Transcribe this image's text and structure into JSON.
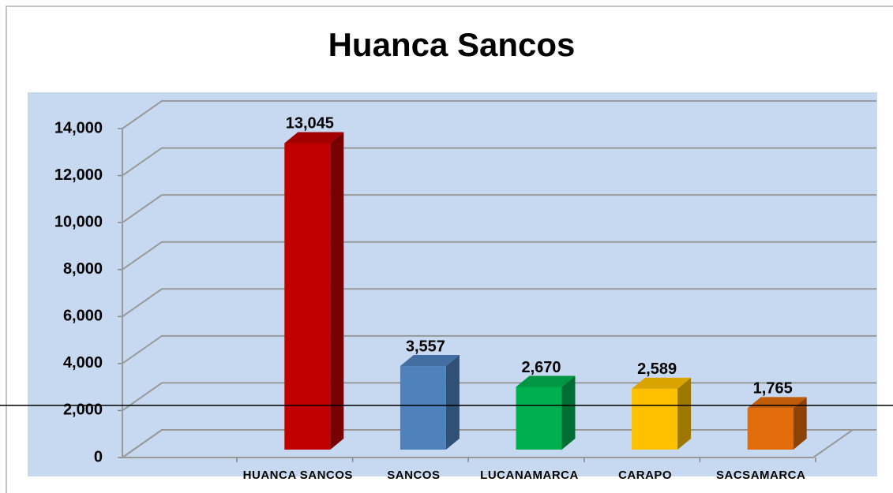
{
  "chart_data": {
    "type": "bar3d",
    "title": "Huanca Sancos",
    "categories": [
      "HUANCA SANCOS",
      "SANCOS",
      "LUCANAMARCA",
      "CARAPO",
      "SACSAMARCA"
    ],
    "values": [
      13045,
      3557,
      2670,
      2589,
      1765
    ],
    "value_labels": [
      "13,045",
      "3,557",
      "2,670",
      "2,589",
      "1,765"
    ],
    "colors": [
      "#c00000",
      "#4f81bd",
      "#00b050",
      "#ffc000",
      "#e36c0a"
    ],
    "ylim": [
      0,
      14000
    ],
    "yticks": [
      0,
      {
        "value": 2000,
        "label": "2,000"
      },
      {
        "value": 4000,
        "label": "4,000"
      },
      {
        "value": 6000,
        "label": "6,000"
      },
      {
        "value": 8000,
        "label": "8,000"
      },
      {
        "value": 10000,
        "label": "10,000"
      },
      {
        "value": 12000,
        "label": "12,000"
      },
      {
        "value": 14000,
        "label": "14,000"
      }
    ],
    "grid": true
  }
}
